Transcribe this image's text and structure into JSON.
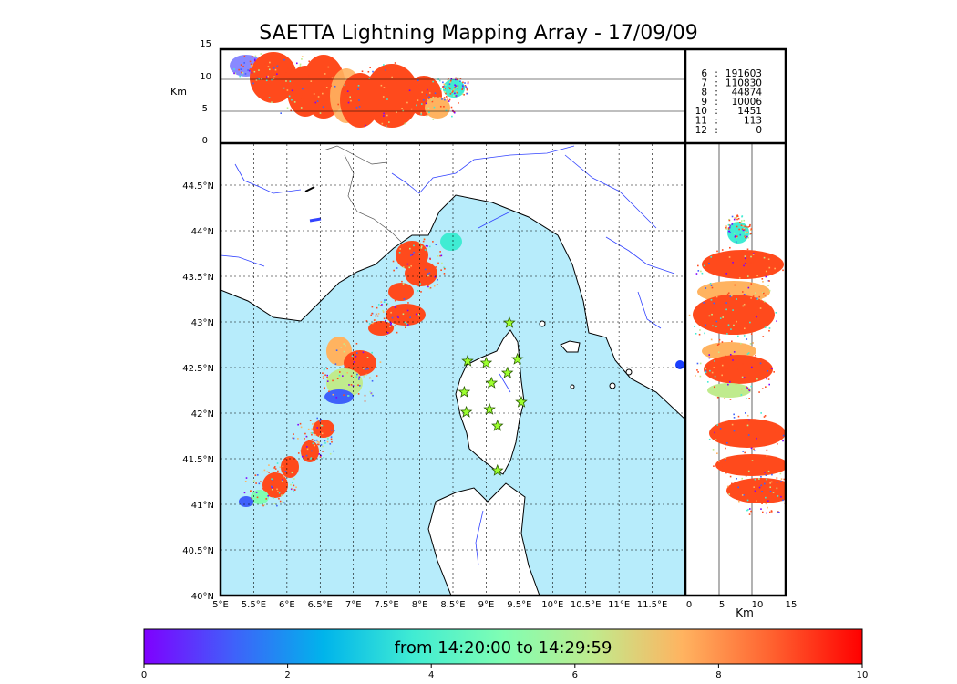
{
  "title": "SAETTA Lightning Mapping Array - 17/09/09",
  "colors": {
    "sea": "#b7ecfb",
    "storm_red": "#ff4a1c",
    "grid": "#000000",
    "coast": "#000000",
    "rivers": "#3344ff"
  },
  "alt_axis_label": "Km",
  "alt_yticks": [
    "15",
    "10",
    "5",
    "0"
  ],
  "lon_ticks": [
    "5°E",
    "5.5°E",
    "6°E",
    "6.5°E",
    "7°E",
    "7.5°E",
    "8°E",
    "8.5°E",
    "9°E",
    "9.5°E",
    "10°E",
    "10.5°E",
    "11°E",
    "11.5°E"
  ],
  "lat_ticks": [
    "44.5°N",
    "44°N",
    "43.5°N",
    "43°N",
    "42.5°N",
    "42°N",
    "41.5°N",
    "41°N",
    "40.5°N",
    "40°N"
  ],
  "side_xticks": [
    "0",
    "5",
    "10",
    "15"
  ],
  "side_axis_label": "Km",
  "station_counts": [
    {
      "label": "6",
      "value": "191603",
      "color": "#000000"
    },
    {
      "label": "7",
      "value": "110830",
      "color": "#ff0000"
    },
    {
      "label": "8",
      "value": "44874",
      "color": "#000000"
    },
    {
      "label": "9",
      "value": "10006",
      "color": "#000000"
    },
    {
      "label": "10",
      "value": "1451",
      "color": "#000000"
    },
    {
      "label": "11",
      "value": "113",
      "color": "#000000"
    },
    {
      "label": "12",
      "value": "0",
      "color": "#000000"
    }
  ],
  "stations": [
    {
      "lon": 9.35,
      "lat": 42.99
    },
    {
      "lon": 8.72,
      "lat": 42.57
    },
    {
      "lon": 9.0,
      "lat": 42.55
    },
    {
      "lon": 9.47,
      "lat": 42.59
    },
    {
      "lon": 9.32,
      "lat": 42.44
    },
    {
      "lon": 9.08,
      "lat": 42.33
    },
    {
      "lon": 8.67,
      "lat": 42.23
    },
    {
      "lon": 9.53,
      "lat": 42.12
    },
    {
      "lon": 9.05,
      "lat": 42.04
    },
    {
      "lon": 8.7,
      "lat": 42.01
    },
    {
      "lon": 9.17,
      "lat": 41.86
    },
    {
      "lon": 9.17,
      "lat": 41.37
    }
  ],
  "colorbar": {
    "label": "from 14:20:00 to 14:29:59",
    "ticks": [
      "0",
      "2",
      "4",
      "6",
      "8",
      "10"
    ],
    "stops": [
      "#7f00ff",
      "#3f61fa",
      "#00b4eb",
      "#40ecd3",
      "#80feb3",
      "#c0eb8d",
      "#ffb360",
      "#ff612f",
      "#ff0000"
    ]
  }
}
